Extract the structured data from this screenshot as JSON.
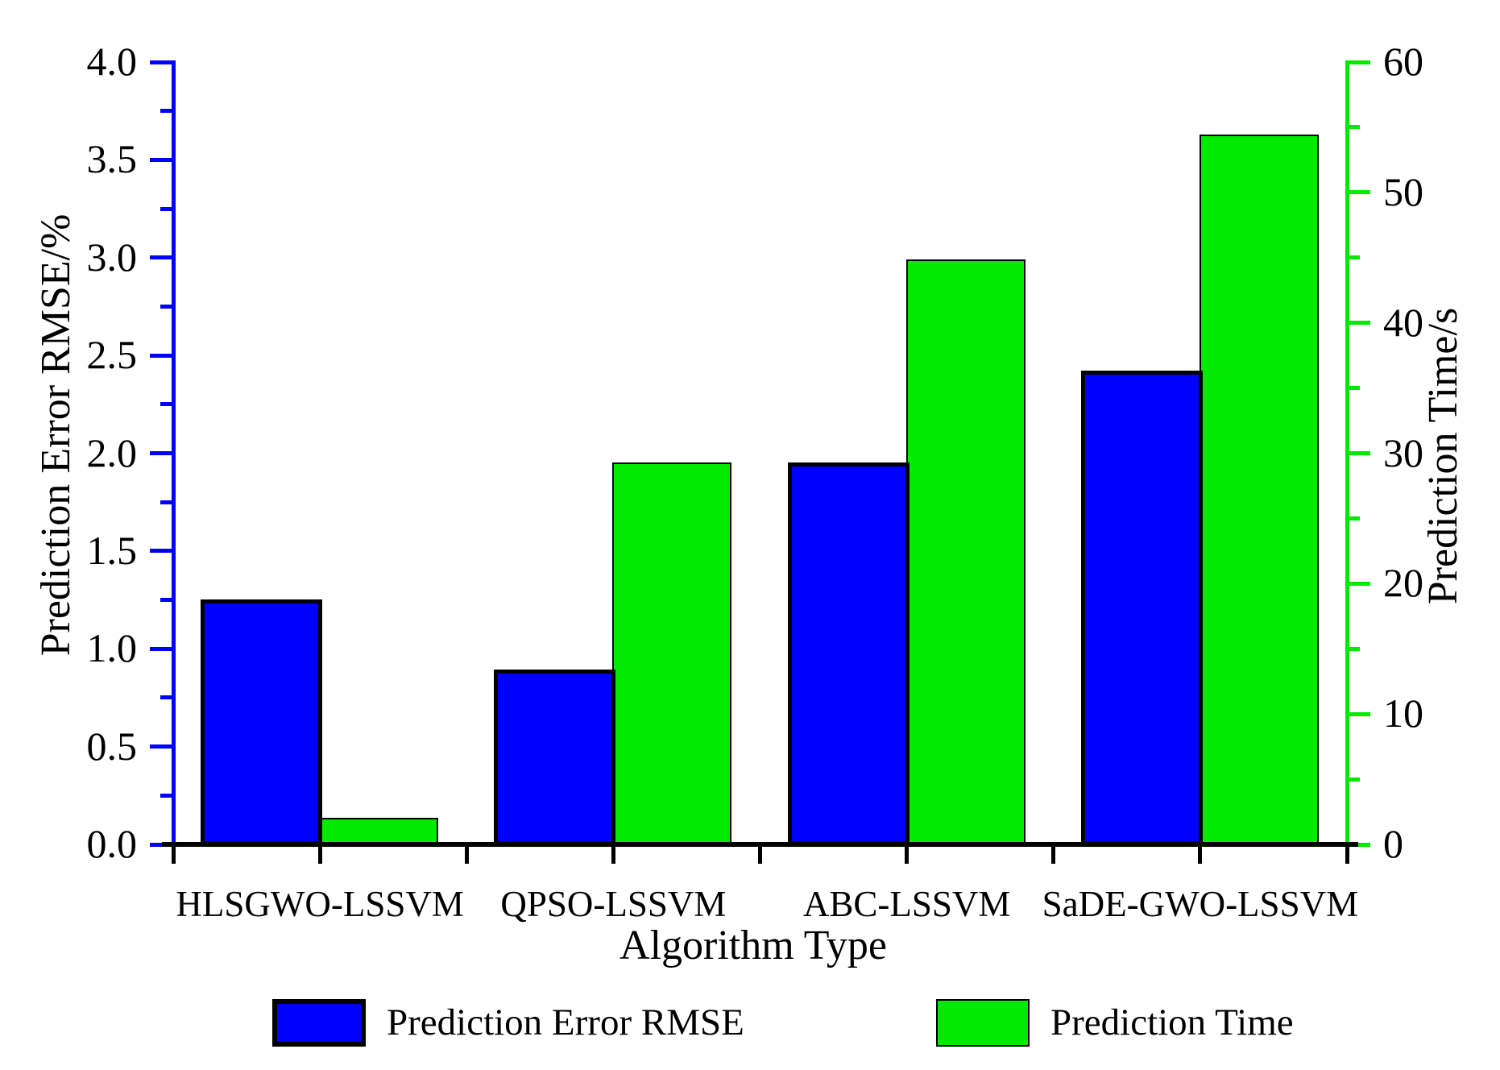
{
  "chart_data": {
    "type": "bar",
    "title": "",
    "categories": [
      "HLSGWO-LSSVM",
      "QPSO-LSSVM",
      "ABC-LSSVM",
      "SaDE-GWO-LSSVM"
    ],
    "series": [
      {
        "name": "Prediction Error RMSE",
        "axis": "left",
        "color": "#0000FF",
        "values": [
          1.24,
          0.88,
          1.94,
          2.41
        ]
      },
      {
        "name": "Prediction Time",
        "axis": "right",
        "color": "#00EA00",
        "values": [
          2.0,
          29.2,
          44.8,
          54.4
        ]
      }
    ],
    "axes": {
      "left": {
        "label": "Prediction Error RMSE/%",
        "min": 0,
        "max": 4,
        "major_step": 0.5,
        "minor_step": 0.25,
        "color": "#0000FF",
        "tick_labels": [
          "0.0",
          "0.5",
          "1.0",
          "1.5",
          "2.0",
          "2.5",
          "3.0",
          "3.5",
          "4.0"
        ]
      },
      "right": {
        "label": "Prediction Time/s",
        "min": 0,
        "max": 60,
        "major_step": 10,
        "minor_step": 5,
        "color": "#00EA00",
        "tick_labels": [
          "0",
          "10",
          "20",
          "30",
          "40",
          "50",
          "60"
        ]
      },
      "x": {
        "label": "Algorithm Type",
        "color": "#000000"
      }
    },
    "legend": {
      "position": "bottom",
      "entries": [
        "Prediction Error RMSE",
        "Prediction Time"
      ]
    },
    "grid": false
  }
}
